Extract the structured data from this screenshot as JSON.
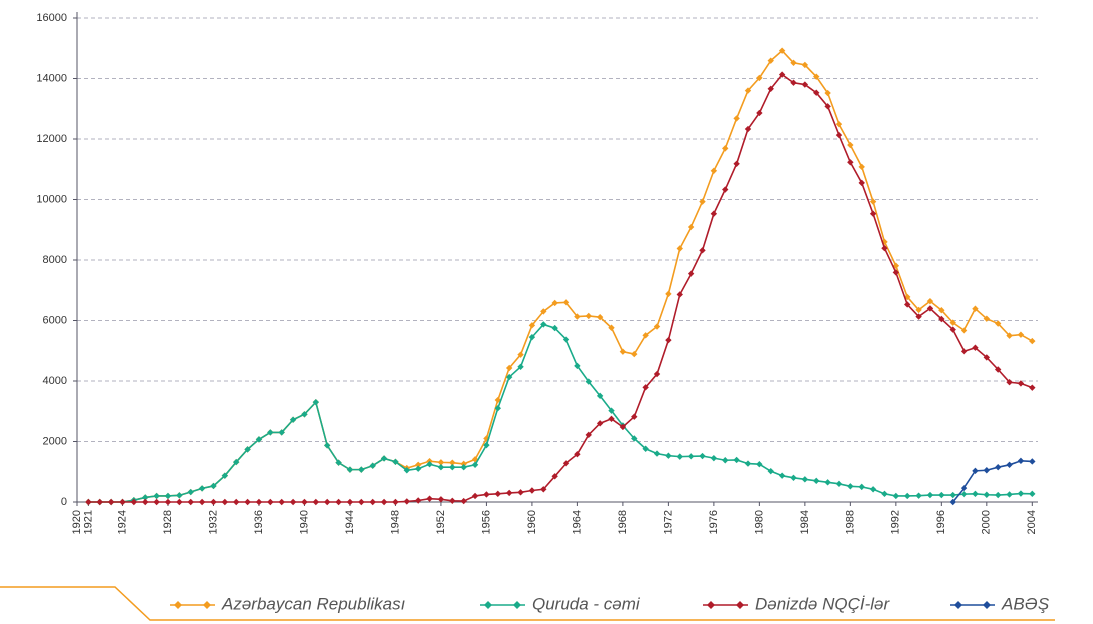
{
  "chart_data": {
    "type": "line",
    "x": [
      1921,
      1922,
      1923,
      1924,
      1925,
      1926,
      1927,
      1928,
      1929,
      1930,
      1931,
      1932,
      1933,
      1934,
      1935,
      1936,
      1937,
      1938,
      1939,
      1940,
      1941,
      1942,
      1943,
      1944,
      1945,
      1946,
      1947,
      1948,
      1949,
      1950,
      1951,
      1952,
      1953,
      1954,
      1955,
      1956,
      1957,
      1958,
      1959,
      1960,
      1961,
      1962,
      1963,
      1964,
      1965,
      1966,
      1967,
      1968,
      1969,
      1970,
      1971,
      1972,
      1973,
      1974,
      1975,
      1976,
      1977,
      1978,
      1979,
      1980,
      1981,
      1982,
      1983,
      1984,
      1985,
      1986,
      1987,
      1988,
      1989,
      1990,
      1991,
      1992,
      1993,
      1994,
      1995,
      1996,
      1997,
      1998,
      1999,
      2000,
      2001,
      2002,
      2003,
      2004
    ],
    "series": [
      {
        "name": "Azərbaycan Republikası",
        "color": "#f39c1f",
        "values": [
          0,
          0,
          0,
          0,
          60,
          150,
          200,
          200,
          220,
          330,
          450,
          530,
          870,
          1320,
          1740,
          2070,
          2300,
          2300,
          2720,
          2900,
          3300,
          1870,
          1300,
          1070,
          1070,
          1200,
          1440,
          1330,
          1120,
          1230,
          1350,
          1310,
          1300,
          1260,
          1410,
          2100,
          3370,
          4430,
          4870,
          5840,
          6300,
          6580,
          6600,
          6130,
          6150,
          6110,
          5760,
          4970,
          4890,
          5510,
          5800,
          6880,
          8380,
          9090,
          9930,
          10950,
          11690,
          12680,
          13600,
          14020,
          14590,
          14920,
          14520,
          14450,
          14060,
          13520,
          12490,
          11800,
          11080,
          9930,
          8600,
          7810,
          6780,
          6350,
          6640,
          6340,
          5930,
          5670,
          6390,
          6060,
          5900,
          5500,
          5530,
          5320
        ]
      },
      {
        "name": "Quruda - cəmi",
        "color": "#1aab8a",
        "values": [
          0,
          0,
          0,
          0,
          60,
          150,
          200,
          200,
          220,
          330,
          450,
          530,
          870,
          1320,
          1740,
          2070,
          2300,
          2300,
          2720,
          2900,
          3300,
          1870,
          1300,
          1070,
          1070,
          1200,
          1440,
          1330,
          1050,
          1100,
          1250,
          1150,
          1150,
          1150,
          1230,
          1880,
          3100,
          4130,
          4470,
          5450,
          5870,
          5750,
          5370,
          4500,
          3980,
          3510,
          3020,
          2530,
          2100,
          1760,
          1600,
          1530,
          1500,
          1510,
          1520,
          1450,
          1380,
          1390,
          1270,
          1250,
          1020,
          870,
          800,
          750,
          700,
          650,
          600,
          520,
          500,
          420,
          270,
          200,
          200,
          210,
          230,
          230,
          230,
          260,
          270,
          240,
          230,
          250,
          280,
          270
        ]
      },
      {
        "name": "Dənizdə NQÇİ-lər",
        "color": "#b01c2a",
        "values": [
          0,
          0,
          0,
          0,
          0,
          0,
          0,
          0,
          0,
          0,
          0,
          0,
          0,
          0,
          0,
          0,
          0,
          0,
          0,
          0,
          0,
          0,
          0,
          0,
          0,
          0,
          0,
          0,
          20,
          50,
          110,
          90,
          40,
          30,
          200,
          250,
          270,
          300,
          320,
          380,
          420,
          850,
          1280,
          1580,
          2220,
          2600,
          2750,
          2480,
          2820,
          3790,
          4230,
          5350,
          6860,
          7550,
          8320,
          9530,
          10330,
          11180,
          12330,
          12860,
          13660,
          14130,
          13860,
          13800,
          13530,
          13080,
          12130,
          11230,
          10550,
          9530,
          8390,
          7590,
          6530,
          6130,
          6400,
          6050,
          5700,
          4980,
          5100,
          4780,
          4380,
          3960,
          3920,
          3780
        ]
      },
      {
        "name": "ABƏŞ",
        "color": "#1f4e9c",
        "values": [
          null,
          null,
          null,
          null,
          null,
          null,
          null,
          null,
          null,
          null,
          null,
          null,
          null,
          null,
          null,
          null,
          null,
          null,
          null,
          null,
          null,
          null,
          null,
          null,
          null,
          null,
          null,
          null,
          null,
          null,
          null,
          null,
          null,
          null,
          null,
          null,
          null,
          null,
          null,
          null,
          null,
          null,
          null,
          null,
          null,
          null,
          null,
          null,
          null,
          null,
          null,
          null,
          null,
          null,
          null,
          null,
          null,
          null,
          null,
          null,
          null,
          null,
          null,
          null,
          null,
          null,
          null,
          null,
          null,
          null,
          null,
          null,
          null,
          null,
          null,
          null,
          0,
          460,
          1030,
          1050,
          1150,
          1230,
          1360,
          1340
        ]
      }
    ],
    "xlim": [
      1920,
      2004.5
    ],
    "xticks": [
      1920,
      1921,
      1924,
      1928,
      1932,
      1936,
      1940,
      1944,
      1948,
      1952,
      1956,
      1960,
      1964,
      1968,
      1972,
      1976,
      1980,
      1984,
      1988,
      1992,
      1996,
      2000,
      2004
    ],
    "ylim": [
      0,
      16000
    ],
    "yticks": [
      0,
      2000,
      4000,
      6000,
      8000,
      10000,
      12000,
      14000,
      16000
    ],
    "grid": true
  }
}
